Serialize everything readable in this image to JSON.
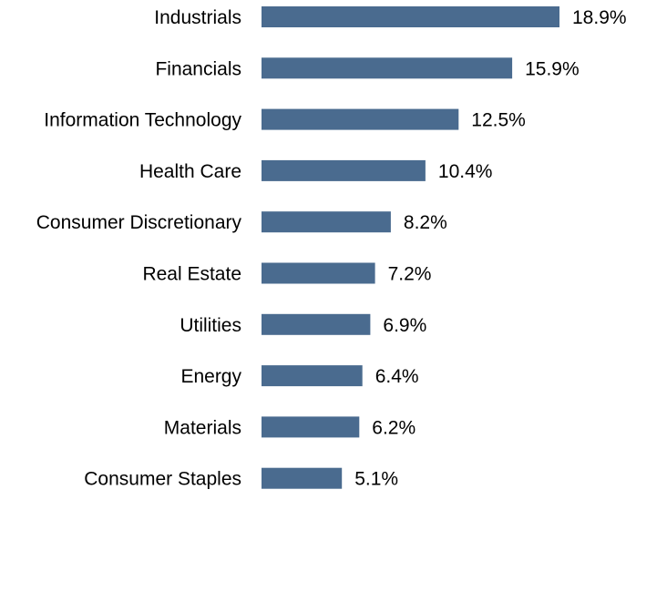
{
  "chart_data": {
    "type": "bar",
    "orientation": "horizontal",
    "categories": [
      "Industrials",
      "Financials",
      "Information Technology",
      "Health Care",
      "Consumer Discretionary",
      "Real Estate",
      "Utilities",
      "Energy",
      "Materials",
      "Consumer Staples"
    ],
    "values": [
      18.9,
      15.9,
      12.5,
      10.4,
      8.2,
      7.2,
      6.9,
      6.4,
      6.2,
      5.1
    ],
    "value_labels": [
      "18.9%",
      "15.9%",
      "12.5%",
      "10.4%",
      "8.2%",
      "7.2%",
      "6.9%",
      "6.4%",
      "6.2%",
      "5.1%"
    ],
    "unit": "%",
    "title": "",
    "xlabel": "",
    "ylabel": "",
    "xlim": [
      0,
      18.9
    ],
    "grid": false,
    "legend": "none",
    "bar_color": "#4a6b8f"
  }
}
